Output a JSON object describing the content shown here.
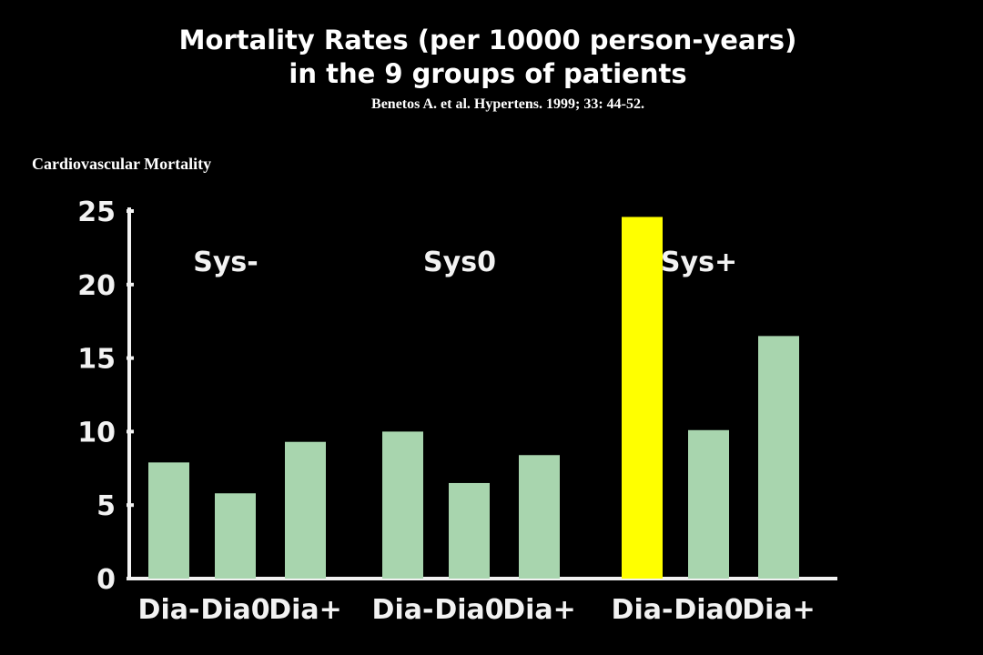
{
  "header": {
    "title_line1": "Mortality Rates (per 10000 person-years)",
    "title_line2": "in the 9 groups of patients",
    "citation": "Benetos A. et al. Hypertens. 1999; 33: 44-52.",
    "subtitle": "Cardiovascular Mortality"
  },
  "colors": {
    "bar": "#a8d5ae",
    "highlight": "#ffff00",
    "axis": "#f2f2f2",
    "background": "#000000"
  },
  "chart_data": {
    "type": "bar",
    "title": "Mortality Rates (per 10000 person-years) in the 9 groups of patients",
    "ylabel": "",
    "xlabel": "",
    "ylim": [
      0,
      25
    ],
    "yticks": [
      "0",
      "5",
      "10",
      "15",
      "20",
      "25"
    ],
    "grid": false,
    "groups": [
      {
        "name": "Sys-",
        "categories": [
          "Dia-",
          "Dia0",
          "Dia+"
        ],
        "values": [
          7.9,
          5.8,
          9.3
        ]
      },
      {
        "name": "Sys0",
        "categories": [
          "Dia-",
          "Dia0",
          "Dia+"
        ],
        "values": [
          10.0,
          6.5,
          8.4
        ]
      },
      {
        "name": "Sys+",
        "categories": [
          "Dia-",
          "Dia0",
          "Dia+"
        ],
        "values": [
          24.6,
          10.1,
          16.5
        ]
      }
    ],
    "highlight": {
      "group": 2,
      "index": 0
    }
  }
}
